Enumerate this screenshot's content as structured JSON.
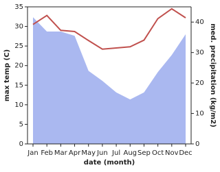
{
  "chart_data": {
    "type": "line-area",
    "x_label": "date (month)",
    "y_label": "max temp (C)",
    "y2_label": "med. precipitation (kg/m2)",
    "categories": [
      "Jan",
      "Feb",
      "Mar",
      "Apr",
      "May",
      "Jun",
      "Jul",
      "Aug",
      "Sep",
      "Oct",
      "Nov",
      "Dec"
    ],
    "ylim": [
      0,
      35
    ],
    "yticks": [
      0,
      5,
      10,
      15,
      20,
      25,
      30,
      35
    ],
    "y2lim": [
      0,
      45
    ],
    "y2ticks": [
      0,
      10,
      20,
      30,
      40
    ],
    "series": [
      {
        "name": "max temp",
        "color": "#c0504d",
        "values": [
          30.5,
          32.8,
          29,
          28.7,
          26.4,
          24.2,
          24.5,
          24.8,
          26.5,
          32,
          34.5,
          32.2
        ]
      },
      {
        "name": "med. precipitation",
        "color": "#aab8f0",
        "axis": "y2",
        "values": [
          41.6,
          36.9,
          36.9,
          35.5,
          24,
          20.7,
          16.9,
          14.6,
          16.9,
          23.6,
          29.2,
          36
        ]
      }
    ]
  }
}
